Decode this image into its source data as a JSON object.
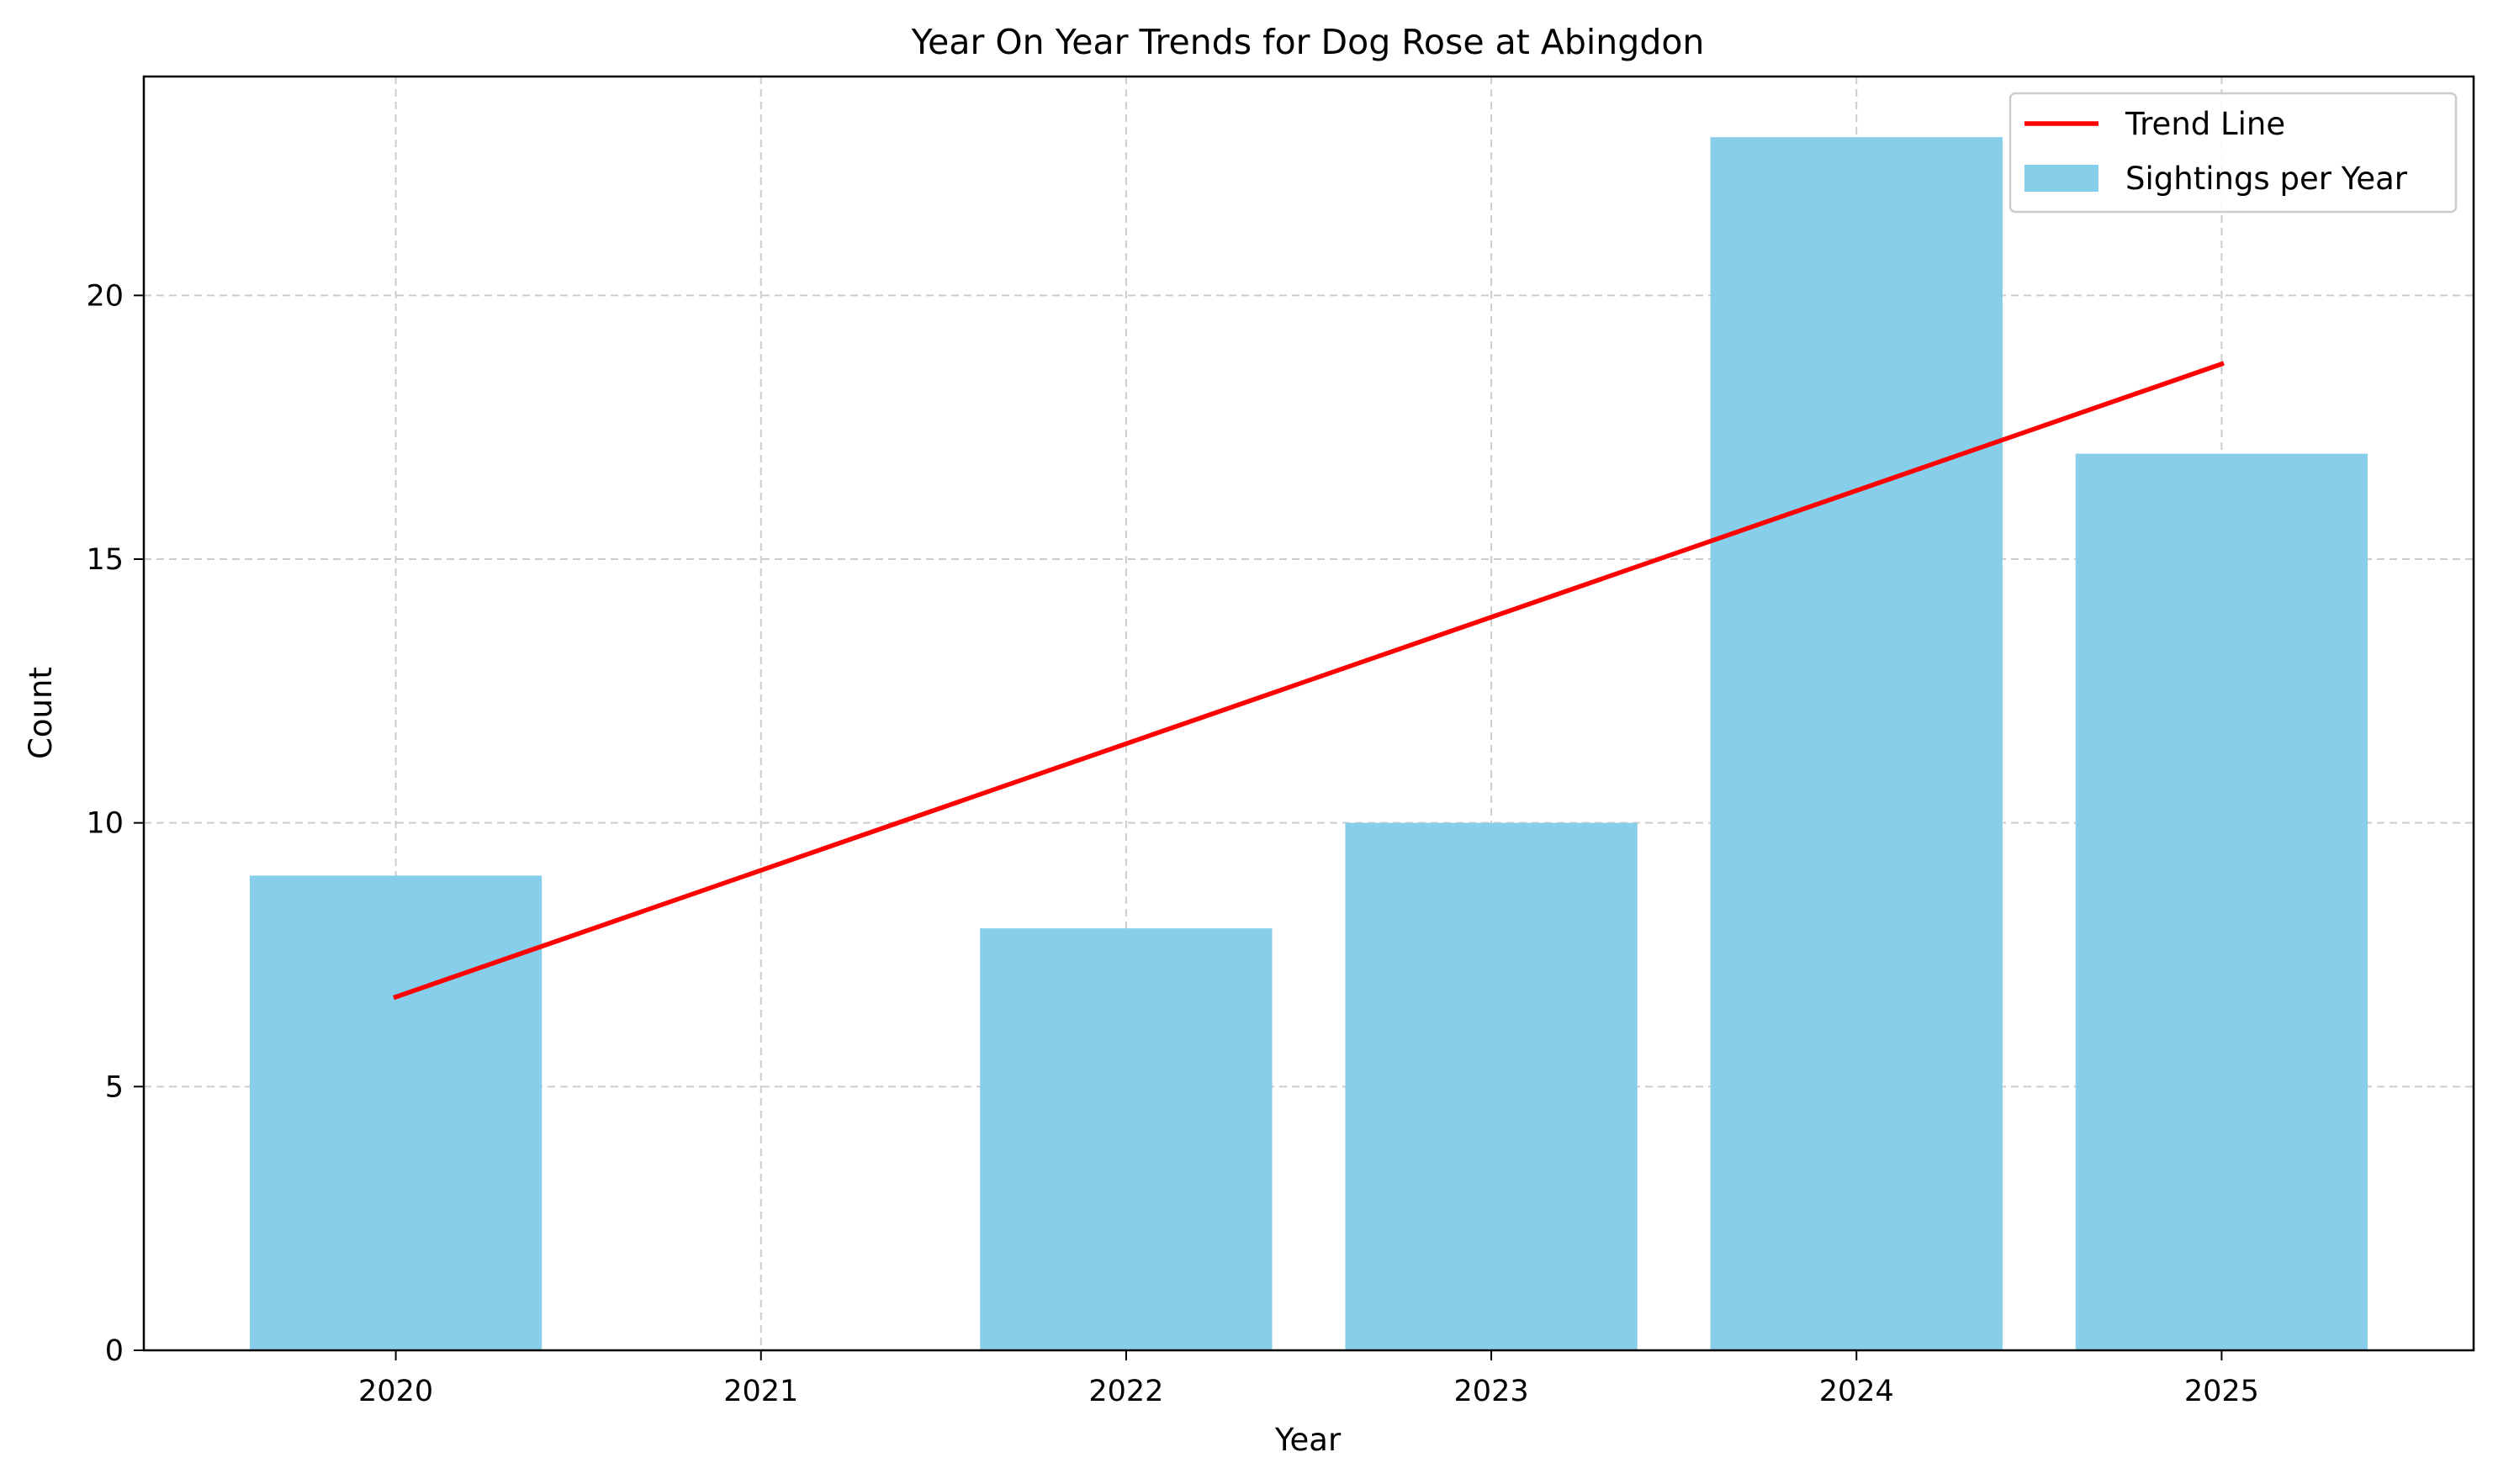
{
  "chart_data": {
    "type": "bar",
    "title": "Year On Year Trends for Dog Rose at Abingdon",
    "xlabel": "Year",
    "ylabel": "Count",
    "categories": [
      "2020",
      "2021",
      "2022",
      "2023",
      "2024",
      "2025"
    ],
    "ylim": [
      0,
      24.15
    ],
    "yticks": [
      0,
      5,
      10,
      15,
      20
    ],
    "grid": true,
    "legend_position": "top-right",
    "series": [
      {
        "name": "Sightings per Year",
        "type": "bar",
        "values": [
          9,
          0,
          8,
          10,
          23,
          17
        ],
        "color": "#87CEEB"
      },
      {
        "name": "Trend Line",
        "type": "line",
        "x": [
          "2020",
          "2025"
        ],
        "values": [
          6.7,
          18.7
        ],
        "color": "#FF0000"
      }
    ]
  }
}
